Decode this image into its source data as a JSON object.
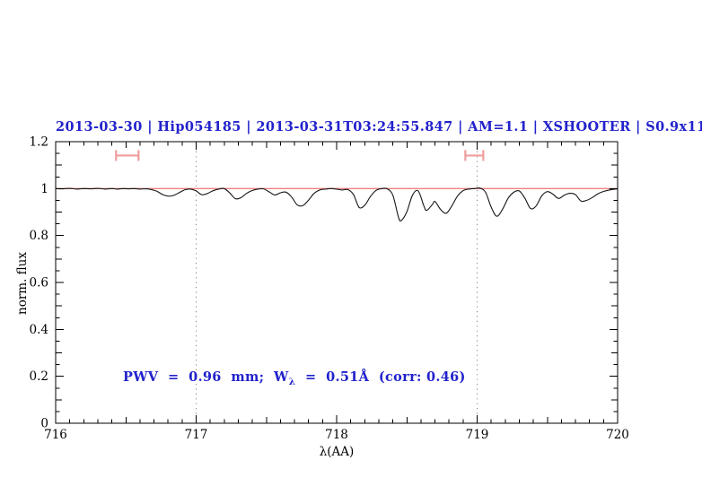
{
  "page": {
    "background": "#ffffff"
  },
  "header": {
    "title": "2013-03-30 | Hip054185 | 2013-03-31T03:24:55.847 | AM=1.1 | XSHOOTER | S0.9x11",
    "color": "#2222cc"
  },
  "annotation": {
    "prefix": "PWV  =  0.96  mm;  W",
    "subscript": "λ",
    "suffix": "  =  0.51Å  (corr: 0.46)",
    "color": "#2222cc"
  },
  "axes": {
    "xlabel": "λ(AA)",
    "ylabel": "norm. flux",
    "x_tick_labels": [
      "716",
      "717",
      "718",
      "719",
      "720"
    ],
    "y_tick_labels": [
      "0",
      "0.2",
      "0.4",
      "0.6",
      "0.8",
      "1",
      "1.2"
    ]
  },
  "chart_data": {
    "type": "line",
    "title": "2013-03-30 | Hip054185 | 2013-03-31T03:24:55.847 | AM=1.1 | XSHOOTER | S0.9x11",
    "xlabel": "λ(AA)",
    "ylabel": "norm. flux",
    "xlim": [
      716,
      720
    ],
    "ylim": [
      0,
      1.2
    ],
    "x_major_ticks": [
      716,
      717,
      718,
      719,
      720
    ],
    "x_minor_step": 0.1,
    "y_major_ticks": [
      0,
      0.2,
      0.4,
      0.6,
      0.8,
      1,
      1.2
    ],
    "y_minor_step": 0.05,
    "grid": "off",
    "dotted_gridlines_x": [
      717,
      719
    ],
    "reference_line": {
      "y": 1.0,
      "color": "#f08080"
    },
    "markers": [
      {
        "x_center": 716.51,
        "x_half_width": 0.08,
        "y": 1.141,
        "cap_half_height": 0.023,
        "color": "#f09c9c"
      },
      {
        "x_center": 718.98,
        "x_half_width": 0.064,
        "y": 1.141,
        "cap_half_height": 0.023,
        "color": "#f09c9c"
      }
    ],
    "annotation_text": "PWV = 0.96 mm; W_λ = 0.51Å (corr: 0.46)",
    "series": [
      {
        "name": "telluric-spectrum",
        "color": "#151515",
        "points": [
          [
            716.0,
            1.0
          ],
          [
            716.05,
            0.999
          ],
          [
            716.1,
            1.001
          ],
          [
            716.15,
            0.998
          ],
          [
            716.2,
            1.0
          ],
          [
            716.25,
            0.999
          ],
          [
            716.3,
            1.001
          ],
          [
            716.35,
            0.998
          ],
          [
            716.4,
            1.0
          ],
          [
            716.44,
            0.998
          ],
          [
            716.48,
            1.0
          ],
          [
            716.52,
            0.999
          ],
          [
            716.56,
            1.0
          ],
          [
            716.6,
            0.998
          ],
          [
            716.64,
            0.999
          ],
          [
            716.68,
            0.996
          ],
          [
            716.72,
            0.989
          ],
          [
            716.76,
            0.975
          ],
          [
            716.8,
            0.968
          ],
          [
            716.84,
            0.971
          ],
          [
            716.88,
            0.983
          ],
          [
            716.92,
            0.995
          ],
          [
            716.96,
            0.998
          ],
          [
            717.0,
            0.99
          ],
          [
            717.04,
            0.974
          ],
          [
            717.08,
            0.979
          ],
          [
            717.12,
            0.991
          ],
          [
            717.16,
            0.998
          ],
          [
            717.2,
            1.0
          ],
          [
            717.24,
            0.981
          ],
          [
            717.28,
            0.957
          ],
          [
            717.32,
            0.962
          ],
          [
            717.36,
            0.98
          ],
          [
            717.4,
            0.992
          ],
          [
            717.44,
            0.998
          ],
          [
            717.48,
            0.999
          ],
          [
            717.52,
            0.986
          ],
          [
            717.56,
            0.973
          ],
          [
            717.6,
            0.982
          ],
          [
            717.64,
            0.985
          ],
          [
            717.68,
            0.964
          ],
          [
            717.72,
            0.93
          ],
          [
            717.76,
            0.928
          ],
          [
            717.8,
            0.951
          ],
          [
            717.84,
            0.98
          ],
          [
            717.88,
            0.994
          ],
          [
            717.92,
            0.998
          ],
          [
            717.96,
            1.0
          ],
          [
            718.0,
            0.998
          ],
          [
            718.04,
            0.994
          ],
          [
            718.08,
            0.996
          ],
          [
            718.12,
            0.974
          ],
          [
            718.16,
            0.92
          ],
          [
            718.2,
            0.929
          ],
          [
            718.24,
            0.966
          ],
          [
            718.28,
            0.992
          ],
          [
            718.32,
            1.0
          ],
          [
            718.36,
            0.999
          ],
          [
            718.4,
            0.972
          ],
          [
            718.44,
            0.878
          ],
          [
            718.46,
            0.864
          ],
          [
            718.5,
            0.902
          ],
          [
            718.54,
            0.972
          ],
          [
            718.58,
            0.99
          ],
          [
            718.62,
            0.928
          ],
          [
            718.64,
            0.907
          ],
          [
            718.68,
            0.931
          ],
          [
            718.7,
            0.945
          ],
          [
            718.74,
            0.911
          ],
          [
            718.78,
            0.895
          ],
          [
            718.82,
            0.926
          ],
          [
            718.86,
            0.968
          ],
          [
            718.9,
            0.991
          ],
          [
            718.94,
            0.998
          ],
          [
            718.98,
            1.0
          ],
          [
            719.02,
            1.002
          ],
          [
            719.06,
            0.984
          ],
          [
            719.1,
            0.921
          ],
          [
            719.14,
            0.882
          ],
          [
            719.18,
            0.911
          ],
          [
            719.22,
            0.958
          ],
          [
            719.26,
            0.984
          ],
          [
            719.3,
            0.99
          ],
          [
            719.34,
            0.959
          ],
          [
            719.38,
            0.915
          ],
          [
            719.42,
            0.926
          ],
          [
            719.46,
            0.969
          ],
          [
            719.5,
            0.987
          ],
          [
            719.54,
            0.976
          ],
          [
            719.58,
            0.958
          ],
          [
            719.62,
            0.972
          ],
          [
            719.66,
            0.98
          ],
          [
            719.7,
            0.974
          ],
          [
            719.74,
            0.947
          ],
          [
            719.78,
            0.95
          ],
          [
            719.82,
            0.962
          ],
          [
            719.86,
            0.978
          ],
          [
            719.9,
            0.988
          ],
          [
            719.94,
            0.994
          ],
          [
            720.0,
            0.999
          ]
        ]
      }
    ]
  }
}
